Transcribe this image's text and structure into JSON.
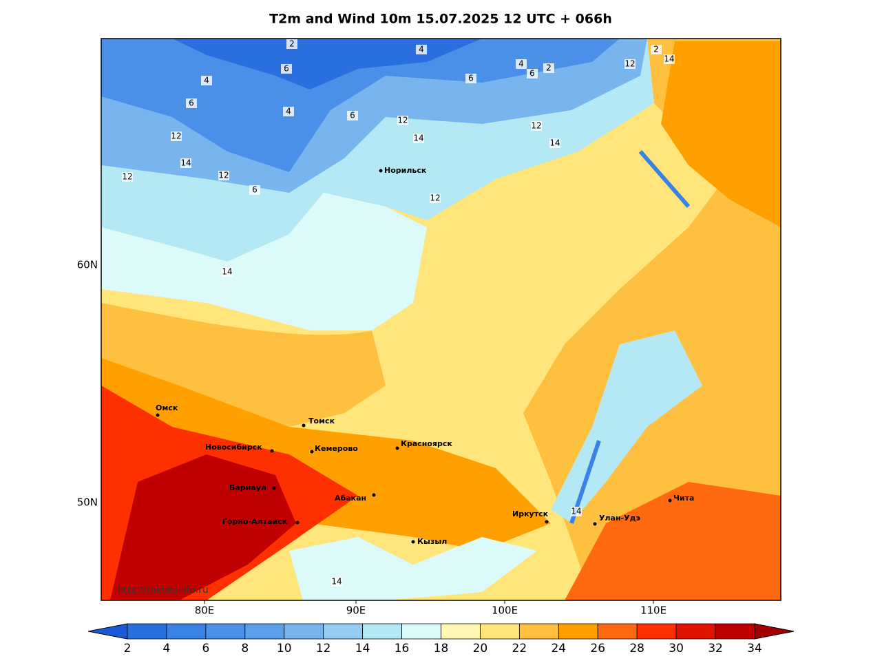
{
  "title": "T2m and Wind 10m 15.07.2025 12 UTC + 066h",
  "lat_labels": [
    "60N",
    "50N"
  ],
  "lon_labels": [
    "80E",
    "90E",
    "100E",
    "110E"
  ],
  "cities": [
    "Норильск",
    "Омск",
    "Томск",
    "Новосибирск",
    "Кемерово",
    "Красноярск",
    "Барнаул",
    "Абакан",
    "Горно-Алтайск",
    "Кызыл",
    "Иркутск",
    "Улан-Удэ",
    "Чита"
  ],
  "contour_labels": [
    "2",
    "4",
    "6",
    "4",
    "6",
    "4",
    "6",
    "6",
    "4",
    "6",
    "2",
    "12",
    "12",
    "14",
    "14",
    "12",
    "14",
    "12",
    "12",
    "6",
    "12",
    "14",
    "12",
    "2",
    "14",
    "14",
    "14"
  ],
  "url": "http://meteoinfo.ru",
  "colorbar": {
    "ticks": [
      2,
      4,
      6,
      8,
      10,
      12,
      14,
      16,
      18,
      20,
      22,
      24,
      26,
      28,
      30,
      32,
      34
    ],
    "colors": [
      "#1a5ad8",
      "#2a6fe0",
      "#3a82e6",
      "#4a90e8",
      "#5aa0ea",
      "#78b4ee",
      "#96ccf2",
      "#b4e8f4",
      "#dcfafa",
      "#fff8b4",
      "#ffe57a",
      "#ffc040",
      "#ffa000",
      "#ff6a10",
      "#ff3000",
      "#e01400",
      "#c00000",
      "#a00000"
    ]
  }
}
